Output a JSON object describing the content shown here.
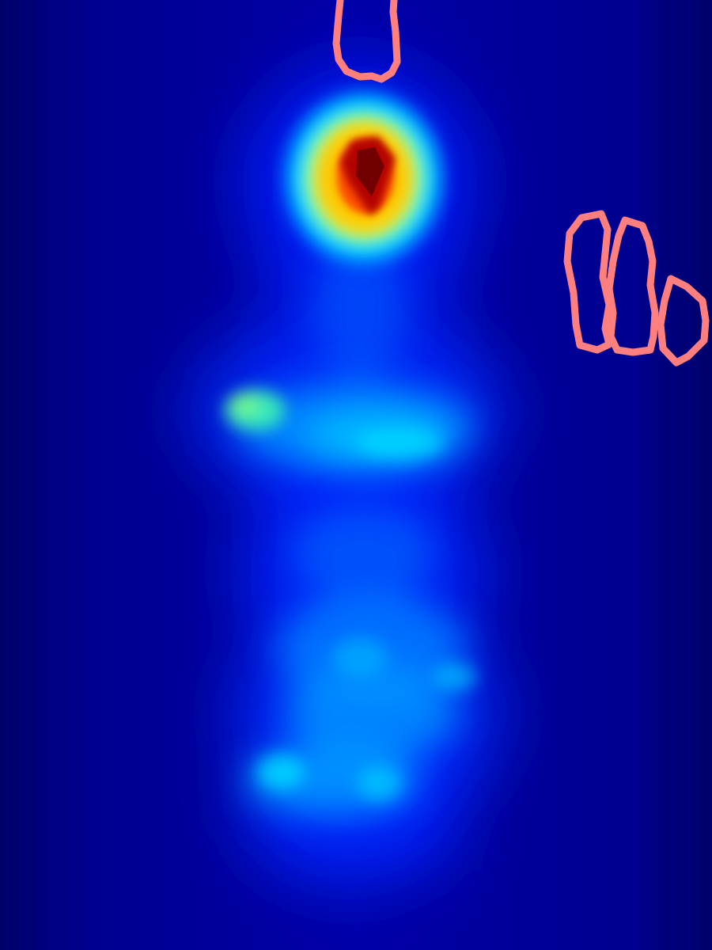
{
  "image": {
    "kind": "heatmap-overlay",
    "colormap": "jet",
    "colors": {
      "background": "#00008f",
      "background_edge": "#00006a",
      "low": "#0000ff",
      "mid_low": "#0090ff",
      "mid": "#00ffff",
      "mid_high": "#7fff7f",
      "high": "#ffff00",
      "higher": "#ff6000",
      "peak": "#800000",
      "contour": "#ff7f7f"
    },
    "hotspots": [
      {
        "name": "head-hotspot",
        "intensity": 1.0
      },
      {
        "name": "arm-hotspot",
        "intensity": 0.45
      },
      {
        "name": "torso-hotspot",
        "intensity": 0.35
      },
      {
        "name": "lower-body-hotspot",
        "intensity": 0.38
      },
      {
        "name": "feet-hotspot",
        "intensity": 0.33
      }
    ],
    "contours": [
      {
        "name": "top-contour"
      },
      {
        "name": "right-contour-left"
      },
      {
        "name": "right-contour-middle"
      },
      {
        "name": "right-contour-right"
      }
    ]
  }
}
